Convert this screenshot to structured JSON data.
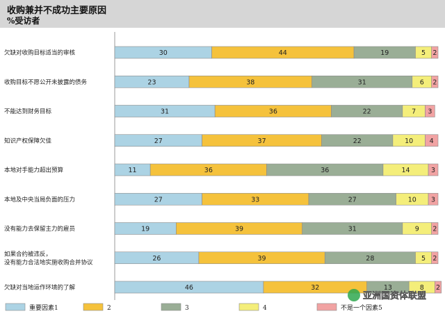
{
  "chart_data": {
    "type": "bar",
    "stacked": true,
    "horizontal": true,
    "title": "收购兼并不成功主要原因",
    "subtitle": "%受访者",
    "categories": [
      "欠缺对收购目标适当的审核",
      "收购目标不愿公开未披露的债务",
      "不能达到财务目标",
      "知识产权保障欠佳",
      "本地对手能力超出预算",
      "本地及中央当局负面的压力",
      "没有能力去保留主力的雇员",
      "如果合约被违反，没有能力合法地实施收购合并协议",
      "欠缺对当地运作环境的了解"
    ],
    "series": [
      {
        "name": "重要因素1",
        "color": "#acd3e4",
        "values": [
          30,
          23,
          31,
          27,
          11,
          27,
          19,
          26,
          46
        ]
      },
      {
        "name": "2",
        "color": "#f5c23c",
        "values": [
          44,
          38,
          36,
          37,
          36,
          33,
          39,
          39,
          32
        ]
      },
      {
        "name": "3",
        "color": "#9aae96",
        "values": [
          19,
          31,
          22,
          22,
          36,
          27,
          31,
          28,
          13
        ]
      },
      {
        "name": "4",
        "color": "#f4ee7a",
        "values": [
          5,
          6,
          7,
          10,
          14,
          10,
          9,
          5,
          8
        ]
      },
      {
        "name": "不是一个因素5",
        "color": "#f1a3a3",
        "values": [
          2,
          2,
          3,
          4,
          3,
          3,
          2,
          2,
          2
        ]
      }
    ],
    "xlim": [
      0,
      100
    ],
    "grid": false,
    "legend": "bottom"
  },
  "watermark": "亚洲国资体联盟"
}
